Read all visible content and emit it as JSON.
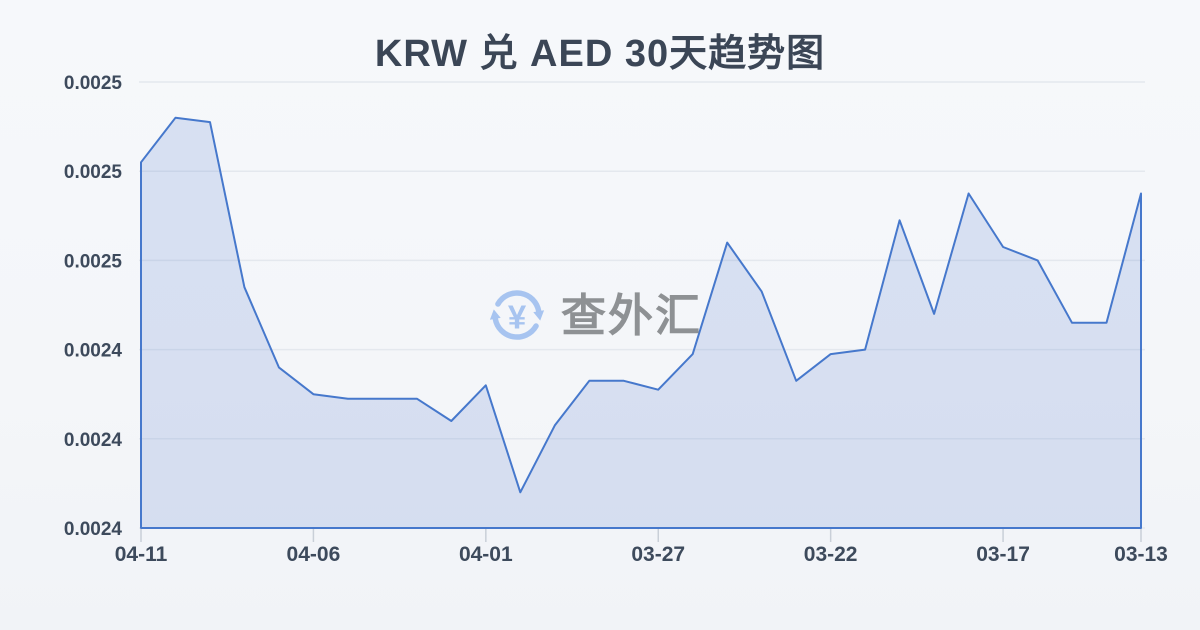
{
  "title": "KRW 兑 AED 30天趋势图",
  "watermark": {
    "text": "查外汇",
    "currency_symbol": "¥"
  },
  "colors": {
    "background": "#f5f7fa",
    "title": "#3b4656",
    "axis_label": "#3d4a5c",
    "grid": "#e4e8ee",
    "line": "#4678cc",
    "fill": "rgba(70,110,200,0.17)",
    "tick": "#c9cfd8",
    "watermark_text": "#8e9194",
    "watermark_icon": "#a7c4f0"
  },
  "chart_data": {
    "type": "area",
    "title": "KRW 兑 AED 30天趋势图",
    "xlabel": "",
    "ylabel": "",
    "grid": true,
    "ylim": [
      0.0024,
      0.0025
    ],
    "y_axis": {
      "top_value": 0.0025,
      "bottom_value": 0.0024,
      "tick_step": 2e-05
    },
    "y_tick_labels": [
      "0.0025",
      "0.0025",
      "0.0025",
      "0.0024",
      "0.0024",
      "0.0024"
    ],
    "x_tick_labels": [
      "04-11",
      "04-06",
      "04-01",
      "03-27",
      "03-22",
      "03-17",
      "03-13"
    ],
    "x_tick_indices": [
      0,
      5,
      10,
      15,
      20,
      25,
      29
    ],
    "x": [
      "04-11",
      "04-10",
      "04-09",
      "04-08",
      "04-07",
      "04-06",
      "04-05",
      "04-04",
      "04-03",
      "04-02",
      "04-01",
      "03-31",
      "03-30",
      "03-29",
      "03-28",
      "03-27",
      "03-26",
      "03-25",
      "03-24",
      "03-23",
      "03-22",
      "03-21",
      "03-20",
      "03-19",
      "03-18",
      "03-17",
      "03-16",
      "03-15",
      "03-14",
      "03-13"
    ],
    "values": [
      0.002482,
      0.002492,
      0.002491,
      0.002454,
      0.002436,
      0.00243,
      0.002429,
      0.002429,
      0.002429,
      0.002424,
      0.002432,
      0.002408,
      0.002423,
      0.002433,
      0.002433,
      0.002431,
      0.002439,
      0.002464,
      0.002453,
      0.002433,
      0.002439,
      0.00244,
      0.002469,
      0.002448,
      0.002475,
      0.002463,
      0.00246,
      0.002446,
      0.002446,
      0.002475
    ]
  }
}
